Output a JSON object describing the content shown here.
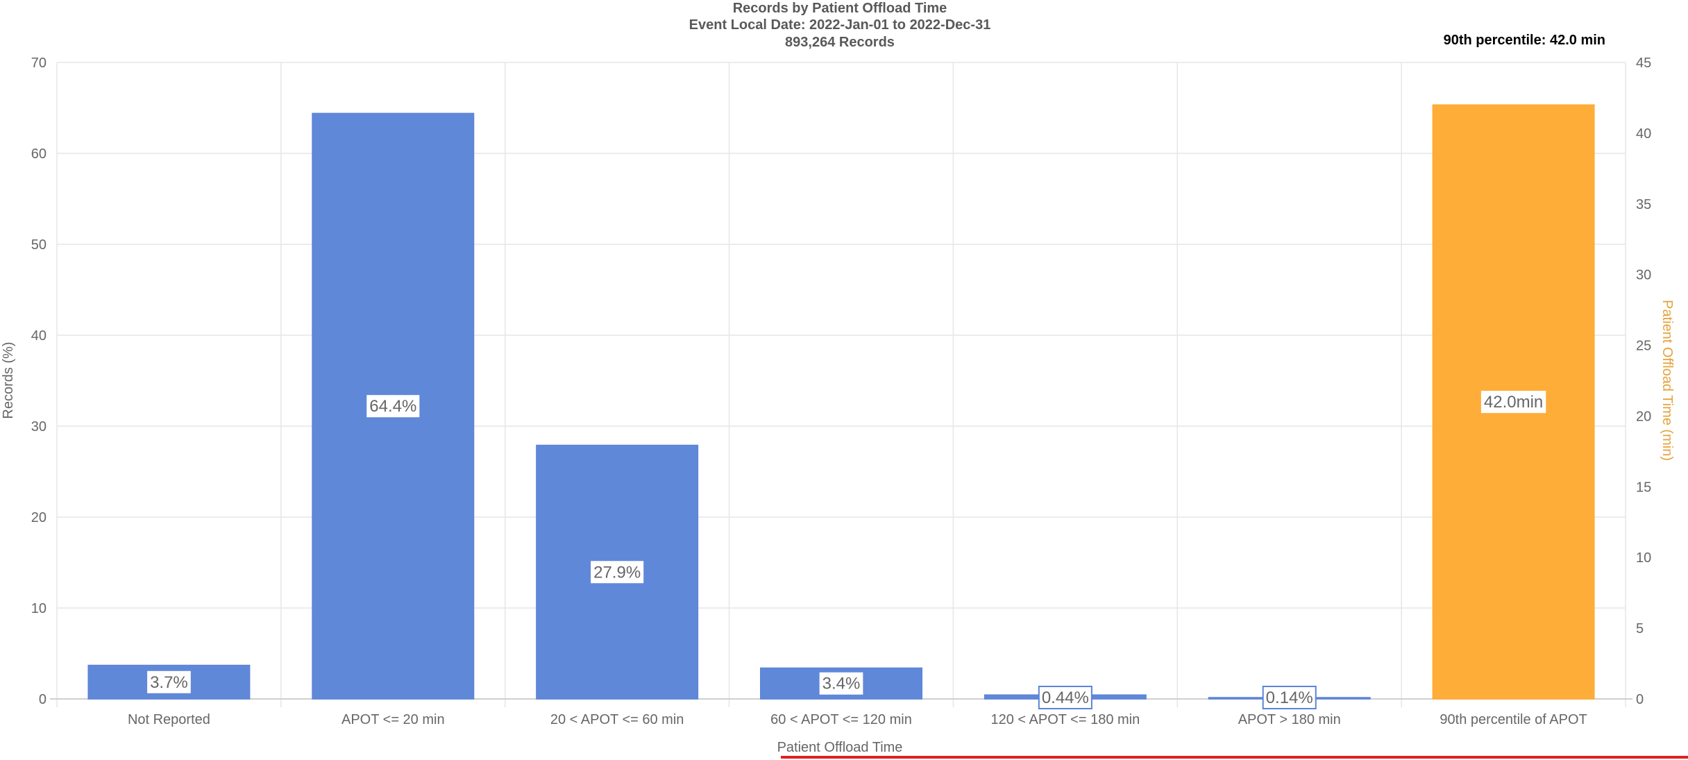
{
  "chart_data": {
    "type": "bar",
    "title": "Records by Patient Offload Time",
    "subtitle_lines": [
      "Event Local Date: 2022-Jan-01 to 2022-Dec-31",
      "893,264 Records"
    ],
    "percentile_note": "90th percentile: 42.0 min",
    "xlabel": "Patient Offload Time",
    "ylabel": "Records (%)",
    "y2label": "Patient Offload Time (min)",
    "ylim": [
      0,
      70
    ],
    "yticks": [
      0,
      10,
      20,
      30,
      40,
      50,
      60,
      70
    ],
    "y2lim": [
      0,
      45
    ],
    "y2ticks": [
      0,
      5,
      10,
      15,
      20,
      25,
      30,
      35,
      40,
      45
    ],
    "grid": true,
    "categories": [
      "Not Reported",
      "APOT <= 20 min",
      "20 < APOT <= 60 min",
      "60 < APOT <= 120 min",
      "120 < APOT <= 180 min",
      "APOT > 180 min",
      "90th percentile of APOT"
    ],
    "series": [
      {
        "axis": "left",
        "color": "#5b84d8",
        "values": [
          3.7,
          64.4,
          27.9,
          3.4,
          0.44,
          0.14,
          null
        ],
        "labels": [
          "3.7%",
          "64.4%",
          "27.9%",
          "3.4%",
          "0.44%",
          "0.14%",
          ""
        ]
      },
      {
        "axis": "right",
        "color": "#ffaa33",
        "values": [
          null,
          null,
          null,
          null,
          null,
          null,
          42.0
        ],
        "labels": [
          "",
          "",
          "",
          "",
          "",
          "",
          "42.0min"
        ]
      }
    ],
    "colors": {
      "primary": "#5b84d8",
      "secondary": "#ffaa33",
      "y2_title": "#e3a33c",
      "underline": "#e02020"
    }
  }
}
